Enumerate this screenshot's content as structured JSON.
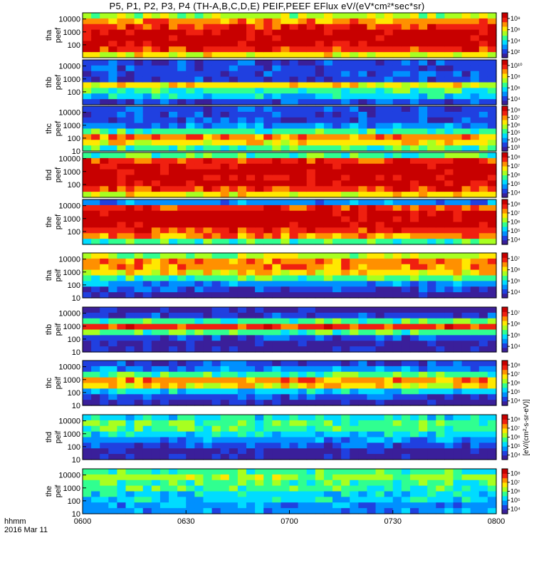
{
  "title": "P5, P1, P2, P3, P4 (TH-A,B,C,D,E) PEIF,PEEF EFlux eV/(eV*cm²*sec*sr)",
  "colorbar_label": "[eV/(cm²-s-sr-eV)]",
  "colormap": [
    "#3a1f9a",
    "#2040e0",
    "#0090ff",
    "#00dcff",
    "#30ff90",
    "#a8ff20",
    "#ffe800",
    "#ff9000",
    "#f02010",
    "#c80000"
  ],
  "chart_data": {
    "type": "heatmap",
    "x_tick_labels": [
      "0600",
      "0630",
      "0700",
      "0730",
      "0800"
    ],
    "x_range": [
      "0600",
      "0800"
    ],
    "x_annotation": [
      "hhmm",
      "2016 Mar 11"
    ],
    "y_scale": "log",
    "panels": [
      {
        "probe": "tha",
        "species": "peef",
        "ylabel": [
          "tha",
          "peef"
        ],
        "yticks": [
          "100",
          "1000",
          "10000"
        ],
        "ylim": [
          10,
          30000
        ],
        "cbar_ticks": [
          "10²",
          "10⁴",
          "10⁶",
          "10⁸"
        ],
        "bands": [
          6,
          8,
          9,
          9,
          9,
          8,
          7,
          5
        ]
      },
      {
        "probe": "thb",
        "species": "peef",
        "ylabel": [
          "thb",
          "peef"
        ],
        "yticks": [
          "100",
          "1000",
          "10000"
        ],
        "ylim": [
          10,
          30000
        ],
        "cbar_ticks": [
          "10⁴",
          "10⁶",
          "10⁸",
          "10¹⁰"
        ],
        "bands": [
          1,
          3,
          4,
          6,
          1,
          1,
          1,
          1
        ]
      },
      {
        "probe": "thc",
        "species": "peef",
        "ylabel": [
          "thc",
          "peef"
        ],
        "yticks": [
          "10",
          "100",
          "1000",
          "10000"
        ],
        "ylim": [
          10,
          30000
        ],
        "cbar_ticks": [
          "10³",
          "10⁴",
          "10⁵",
          "10⁶",
          "10⁷",
          "10⁸"
        ],
        "bands": [
          4,
          6,
          7,
          4,
          2,
          1,
          1,
          1
        ]
      },
      {
        "probe": "thd",
        "species": "peef",
        "ylabel": [
          "thd",
          "peef"
        ],
        "yticks": [
          "100",
          "1000",
          "10000"
        ],
        "ylim": [
          10,
          30000
        ],
        "cbar_ticks": [
          "10⁴",
          "10⁵",
          "10⁶",
          "10⁷",
          "10⁸"
        ],
        "bands": [
          6,
          8,
          9,
          9,
          9,
          9,
          8,
          4
        ]
      },
      {
        "probe": "the",
        "species": "peef",
        "ylabel": [
          "the",
          "peef"
        ],
        "yticks": [
          "100",
          "1000",
          "10000"
        ],
        "ylim": [
          10,
          30000
        ],
        "cbar_ticks": [
          "10⁴",
          "10⁵",
          "10⁶",
          "10⁷",
          "10⁸"
        ],
        "bands": [
          4,
          7,
          8,
          9,
          9,
          9,
          8,
          2
        ]
      },
      {
        "probe": "tha",
        "species": "peif",
        "ylabel": [
          "tha",
          "peif"
        ],
        "yticks": [
          "10",
          "100",
          "1000",
          "10000"
        ],
        "ylim": [
          10,
          30000
        ],
        "cbar_ticks": [
          "10⁴",
          "10⁵",
          "10⁶",
          "10⁷"
        ],
        "bands": [
          0,
          1,
          2,
          4,
          6,
          7,
          7,
          5
        ]
      },
      {
        "probe": "thb",
        "species": "peif",
        "ylabel": [
          "thb",
          "peif"
        ],
        "yticks": [
          "10",
          "100",
          "1000",
          "10000"
        ],
        "ylim": [
          10,
          30000
        ],
        "cbar_ticks": [
          "10⁴",
          "10⁵",
          "10⁶",
          "10⁷"
        ],
        "bands": [
          0,
          0,
          1,
          4,
          8,
          4,
          1,
          0
        ]
      },
      {
        "probe": "thc",
        "species": "peif",
        "ylabel": [
          "thc",
          "peif"
        ],
        "yticks": [
          "10",
          "100",
          "1000",
          "10000"
        ],
        "ylim": [
          10,
          30000
        ],
        "cbar_ticks": [
          "10⁴",
          "10⁵",
          "10⁶",
          "10⁷",
          "10⁸"
        ],
        "bands": [
          0,
          1,
          3,
          6,
          7,
          4,
          2,
          1
        ]
      },
      {
        "probe": "thd",
        "species": "peif",
        "ylabel": [
          "thd",
          "peif"
        ],
        "yticks": [
          "10",
          "100",
          "1000",
          "10000"
        ],
        "ylim": [
          10,
          30000
        ],
        "cbar_ticks": [
          "10⁴",
          "10⁵",
          "10⁶",
          "10⁷",
          "10⁸"
        ],
        "bands": [
          0,
          0,
          1,
          2,
          3,
          4,
          4,
          3
        ]
      },
      {
        "probe": "the",
        "species": "peif",
        "ylabel": [
          "the",
          "peif"
        ],
        "yticks": [
          "10",
          "100",
          "1000",
          "10000"
        ],
        "ylim": [
          10,
          30000
        ],
        "cbar_ticks": [
          "10⁴",
          "10⁵",
          "10⁶",
          "10⁷",
          "10⁸"
        ],
        "bands": [
          2,
          2,
          3,
          3,
          4,
          4,
          5,
          4
        ]
      }
    ]
  }
}
